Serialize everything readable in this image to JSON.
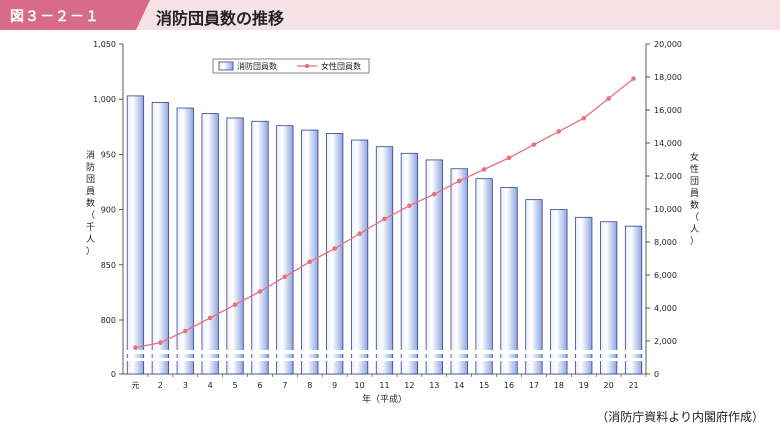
{
  "header": {
    "figure_label": "図３－２－１",
    "title": "消防団員数の推移"
  },
  "source_note": "（消防庁資料より内閣府作成）",
  "colors": {
    "header_band": "#f6e1e7",
    "figure_label_bg": "#d86a8a",
    "bar_edge": "#3a3f8f",
    "bar_fill_light": "#ffffff",
    "bar_fill_dark": "#9fb3e6",
    "line": "#e8707a"
  },
  "chart_data": {
    "type": "bar+line",
    "categories": [
      "元",
      "2",
      "3",
      "4",
      "5",
      "6",
      "7",
      "8",
      "9",
      "10",
      "11",
      "12",
      "13",
      "14",
      "15",
      "16",
      "17",
      "18",
      "19",
      "20",
      "21"
    ],
    "xlabel": "年（平成）",
    "y_left": {
      "label": "消防団員数（千人）",
      "axis_break": true,
      "ticks": [
        0,
        800,
        850,
        900,
        950,
        1000,
        1050
      ],
      "tick_labels": [
        "0",
        "800",
        "850",
        "900",
        "950",
        "1,000",
        "1,050"
      ],
      "range": [
        750,
        1050
      ]
    },
    "y_right": {
      "label": "女性団員数（人）",
      "ticks": [
        0,
        2000,
        4000,
        6000,
        8000,
        10000,
        12000,
        14000,
        16000,
        18000,
        20000
      ],
      "tick_labels": [
        "0",
        "2,000",
        "4,000",
        "6,000",
        "8,000",
        "10,000",
        "12,000",
        "14,000",
        "16,000",
        "18,000",
        "20,000"
      ],
      "range": [
        0,
        20000
      ]
    },
    "series": [
      {
        "name": "消防団員数",
        "type": "bar",
        "axis": "left",
        "values": [
          1003,
          997,
          992,
          987,
          983,
          980,
          976,
          972,
          969,
          963,
          957,
          951,
          945,
          937,
          928,
          920,
          909,
          900,
          893,
          889,
          885
        ]
      },
      {
        "name": "女性団員数",
        "type": "line",
        "axis": "right",
        "values": [
          1600,
          1900,
          2600,
          3400,
          4200,
          5000,
          5900,
          6800,
          7600,
          8500,
          9400,
          10200,
          10900,
          11700,
          12400,
          13100,
          13900,
          14700,
          15500,
          16700,
          17900
        ]
      }
    ],
    "legend": {
      "placement": "top-left",
      "entries": [
        "消防団員数",
        "女性団員数"
      ]
    },
    "grid": false
  }
}
